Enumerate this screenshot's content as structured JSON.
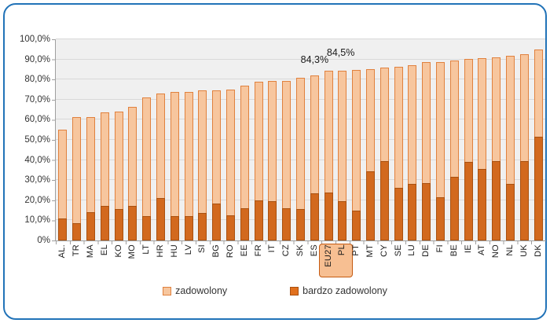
{
  "colors": {
    "frame_blue": "#2273b8",
    "satisfied_light": "#f7c69e",
    "satisfied_border": "#e0813e",
    "very_satisfied_dark": "#d2691e",
    "plot_background": "#f0f0f0",
    "gridline": "#d9d9d9",
    "highlight_fill": "#f7bf92",
    "highlight_border": "#c55a11"
  },
  "axis_y": {
    "min": 0,
    "max": 100,
    "step": 10,
    "labels": [
      "100,0%",
      "90,0%",
      "80,0%",
      "70,0%",
      "60,0%",
      "50,0%",
      "40,0%",
      "30,0%",
      "20,0%",
      "10,0%",
      "0%"
    ]
  },
  "legend": {
    "items": [
      {
        "label": "zadowolony",
        "color": "#f7c69e"
      },
      {
        "label": "bardzo zadowolony",
        "color": "#e1701d"
      }
    ]
  },
  "annotations": [
    {
      "text": "84,3%",
      "category": "EU27"
    },
    {
      "text": "84,5%",
      "category": "PL"
    }
  ],
  "highlight": {
    "categories": [
      "EU27",
      "PL"
    ]
  },
  "chart_data": {
    "type": "bar",
    "stacked": true,
    "title": "",
    "xlabel": "",
    "ylabel": "",
    "ylim": [
      0,
      100
    ],
    "grid": "horizontal",
    "legend_position": "bottom",
    "categories": [
      "AL.",
      "TR",
      "MA",
      "EL",
      "KO",
      "MO",
      "LT",
      "HR",
      "HU",
      "LV",
      "SI",
      "BG",
      "RO",
      "EE",
      "FR",
      "IT",
      "CZ",
      "SK",
      "ES",
      "EU27",
      "PL",
      "PT",
      "MT",
      "CY",
      "SE",
      "LU",
      "DE",
      "FI",
      "BE",
      "IE",
      "AT",
      "NO",
      "NL",
      "UK",
      "DK"
    ],
    "series": [
      {
        "name": "zadowolony",
        "meaning": "total satisfied - top of stacked bar",
        "values": [
          55.0,
          61.5,
          61.5,
          63.5,
          64.0,
          66.5,
          71.0,
          73.0,
          74.0,
          74.0,
          74.5,
          74.5,
          75.0,
          77.0,
          79.0,
          79.5,
          79.5,
          81.0,
          82.0,
          84.3,
          84.5,
          84.6,
          85.0,
          86.0,
          86.5,
          87.0,
          88.5,
          88.5,
          89.5,
          90.3,
          90.5,
          91.0,
          92.0,
          92.5,
          95.0
        ]
      },
      {
        "name": "bardzo zadowolony",
        "meaning": "very satisfied - dark lower segment",
        "values": [
          11.0,
          8.5,
          14.0,
          17.0,
          15.5,
          17.0,
          12.0,
          21.0,
          12.0,
          12.0,
          13.5,
          18.5,
          12.5,
          16.0,
          20.0,
          19.5,
          16.0,
          15.5,
          23.5,
          24.0,
          19.5,
          15.0,
          34.5,
          39.5,
          26.0,
          28.0,
          28.5,
          21.5,
          31.5,
          39.0,
          35.5,
          39.5,
          28.0,
          39.5,
          51.5
        ]
      }
    ]
  }
}
